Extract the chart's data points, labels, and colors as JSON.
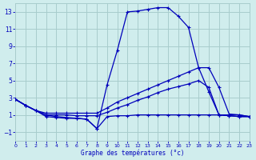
{
  "bg_color": "#d0eded",
  "grid_color": "#a8cccc",
  "line_color": "#0000bb",
  "xlim": [
    0,
    23
  ],
  "ylim": [
    -2,
    14
  ],
  "yticks": [
    -1,
    1,
    3,
    5,
    7,
    9,
    11,
    13
  ],
  "xticks": [
    0,
    1,
    2,
    3,
    4,
    5,
    6,
    7,
    8,
    9,
    10,
    11,
    12,
    13,
    14,
    15,
    16,
    17,
    18,
    19,
    20,
    21,
    22,
    23
  ],
  "xlabel": "Graphe des températures (°c)",
  "curve1_x": [
    0,
    1,
    2,
    3,
    4,
    5,
    6,
    7,
    8,
    9,
    10,
    11,
    12,
    13,
    14,
    15,
    16,
    17,
    18,
    19,
    20,
    21,
    22,
    23
  ],
  "curve1_y": [
    2.8,
    2.1,
    1.5,
    1.0,
    0.8,
    0.7,
    0.6,
    0.5,
    -0.6,
    4.5,
    8.5,
    13.0,
    13.1,
    13.3,
    13.5,
    13.5,
    12.5,
    11.2,
    6.5,
    3.7,
    1.0,
    0.9,
    0.8,
    0.8
  ],
  "curve2_x": [
    0,
    1,
    2,
    3,
    4,
    5,
    6,
    7,
    8,
    9,
    10,
    11,
    12,
    13,
    14,
    15,
    16,
    17,
    18,
    19,
    20,
    21,
    22,
    23
  ],
  "curve2_y": [
    2.8,
    2.1,
    1.5,
    1.2,
    1.2,
    1.2,
    1.2,
    1.2,
    1.2,
    1.8,
    2.5,
    3.0,
    3.5,
    4.0,
    4.5,
    5.0,
    5.5,
    6.0,
    6.5,
    6.5,
    4.2,
    1.1,
    1.0,
    0.8
  ],
  "curve3_x": [
    0,
    1,
    2,
    3,
    4,
    5,
    6,
    7,
    8,
    9,
    10,
    11,
    12,
    13,
    14,
    15,
    16,
    17,
    18,
    19,
    20,
    21,
    22,
    23
  ],
  "curve3_y": [
    2.8,
    2.1,
    1.5,
    1.0,
    1.0,
    1.0,
    0.9,
    0.9,
    0.9,
    1.3,
    1.8,
    2.2,
    2.7,
    3.1,
    3.6,
    4.0,
    4.3,
    4.6,
    5.0,
    4.2,
    1.0,
    1.0,
    1.0,
    0.8
  ],
  "curve4_x": [
    0,
    1,
    2,
    3,
    4,
    5,
    6,
    7,
    8,
    9,
    10,
    11,
    12,
    13,
    14,
    15,
    16,
    17,
    18,
    19,
    20,
    21,
    22,
    23
  ],
  "curve4_y": [
    2.8,
    2.1,
    1.5,
    0.8,
    0.7,
    0.6,
    0.6,
    0.5,
    -0.6,
    0.8,
    0.9,
    0.9,
    1.0,
    1.0,
    1.0,
    1.0,
    1.0,
    1.0,
    1.0,
    1.0,
    1.0,
    0.9,
    0.8,
    0.8
  ]
}
